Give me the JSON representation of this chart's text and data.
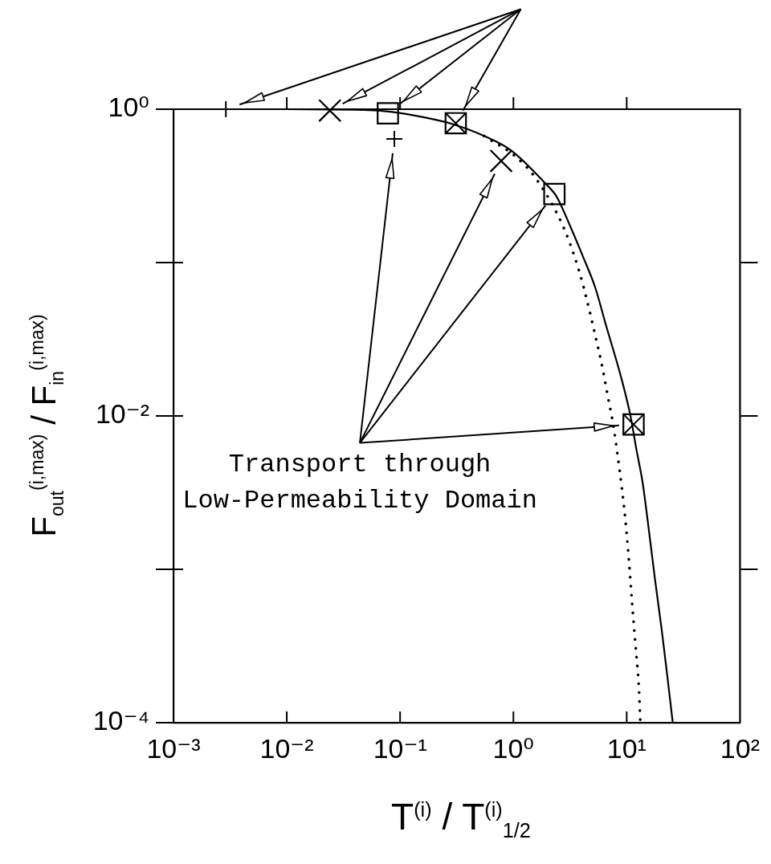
{
  "chart_data": {
    "type": "line",
    "xlabel": "T$^{(i)}$ / T$^{(i)}$$_{1/2}$",
    "ylabel": "F$_{out}$$^{(i,max)}$ / F$_{in}$$^{(i,max)}$",
    "annotations": [
      "Transport through\nLow-Permeability Domain"
    ],
    "log": "xy",
    "xlim": [
      0.001,
      100
    ],
    "ylim": [
      0.0001,
      1
    ],
    "xticks": [
      {
        "value": 0.001,
        "label": "10⁻³"
      },
      {
        "value": 0.01,
        "label": "10⁻²"
      },
      {
        "value": 0.1,
        "label": "10⁻¹"
      },
      {
        "value": 1,
        "label": "10⁰"
      },
      {
        "value": 10,
        "label": "10¹"
      },
      {
        "value": 100,
        "label": "10²"
      }
    ],
    "yticks": [
      {
        "value": 1,
        "label": "10⁰"
      },
      {
        "value": 0.1,
        "label": null
      },
      {
        "value": 0.01,
        "label": "10⁻²"
      },
      {
        "value": 0.001,
        "label": null
      },
      {
        "value": 0.0001,
        "label": "10⁻⁴"
      }
    ],
    "series": [
      {
        "color": "#000000",
        "line_style": "solid",
        "marker": "none",
        "x": [
          0.01,
          0.048,
          0.085,
          0.17,
          0.29,
          0.55,
          0.95,
          1.9,
          2.4,
          3.2,
          4.1,
          5.3,
          6.5,
          8.9,
          10.8,
          12.2,
          13.8,
          16.0,
          17.8,
          20.3,
          22.5,
          25.5
        ],
        "values": [
          1.0,
          0.99,
          0.96,
          0.88,
          0.8,
          0.67,
          0.54,
          0.33,
          0.27,
          0.17,
          0.11,
          0.068,
          0.04,
          0.018,
          0.01,
          0.006,
          0.0037,
          0.0016,
          0.00085,
          0.00041,
          0.00022,
          0.0001
        ]
      },
      {
        "color": "#000000",
        "line_style": "dotted",
        "marker": "none",
        "x": [
          0.55,
          1.05,
          1.55,
          2.5,
          3.15,
          3.8,
          4.45,
          5.3,
          6.0,
          6.8,
          7.6,
          8.3,
          9.1,
          9.8,
          10.5,
          11.2,
          12.0,
          12.8,
          13.2
        ],
        "values": [
          0.67,
          0.49,
          0.36,
          0.2,
          0.134,
          0.088,
          0.057,
          0.033,
          0.022,
          0.0135,
          0.0088,
          0.0056,
          0.0033,
          0.002,
          0.0011,
          0.00058,
          0.00031,
          0.00017,
          0.0001
        ]
      },
      {
        "type": "scatter",
        "color": "#000000",
        "marker": "cross",
        "x": [
          0.0029,
          0.089
        ],
        "values": [
          1.0,
          0.64
        ]
      },
      {
        "type": "scatter",
        "color": "#000000",
        "marker": "x",
        "x": [
          0.024,
          0.78
        ],
        "values": [
          0.98,
          0.46
        ]
      },
      {
        "type": "scatter",
        "color": "#000000",
        "marker": "square",
        "x": [
          0.078,
          2.3
        ],
        "values": [
          0.94,
          0.28
        ]
      },
      {
        "type": "scatter",
        "color": "#000000",
        "marker": "square-x",
        "x": [
          0.31,
          11.5
        ],
        "values": [
          0.81,
          0.0088
        ]
      }
    ]
  }
}
